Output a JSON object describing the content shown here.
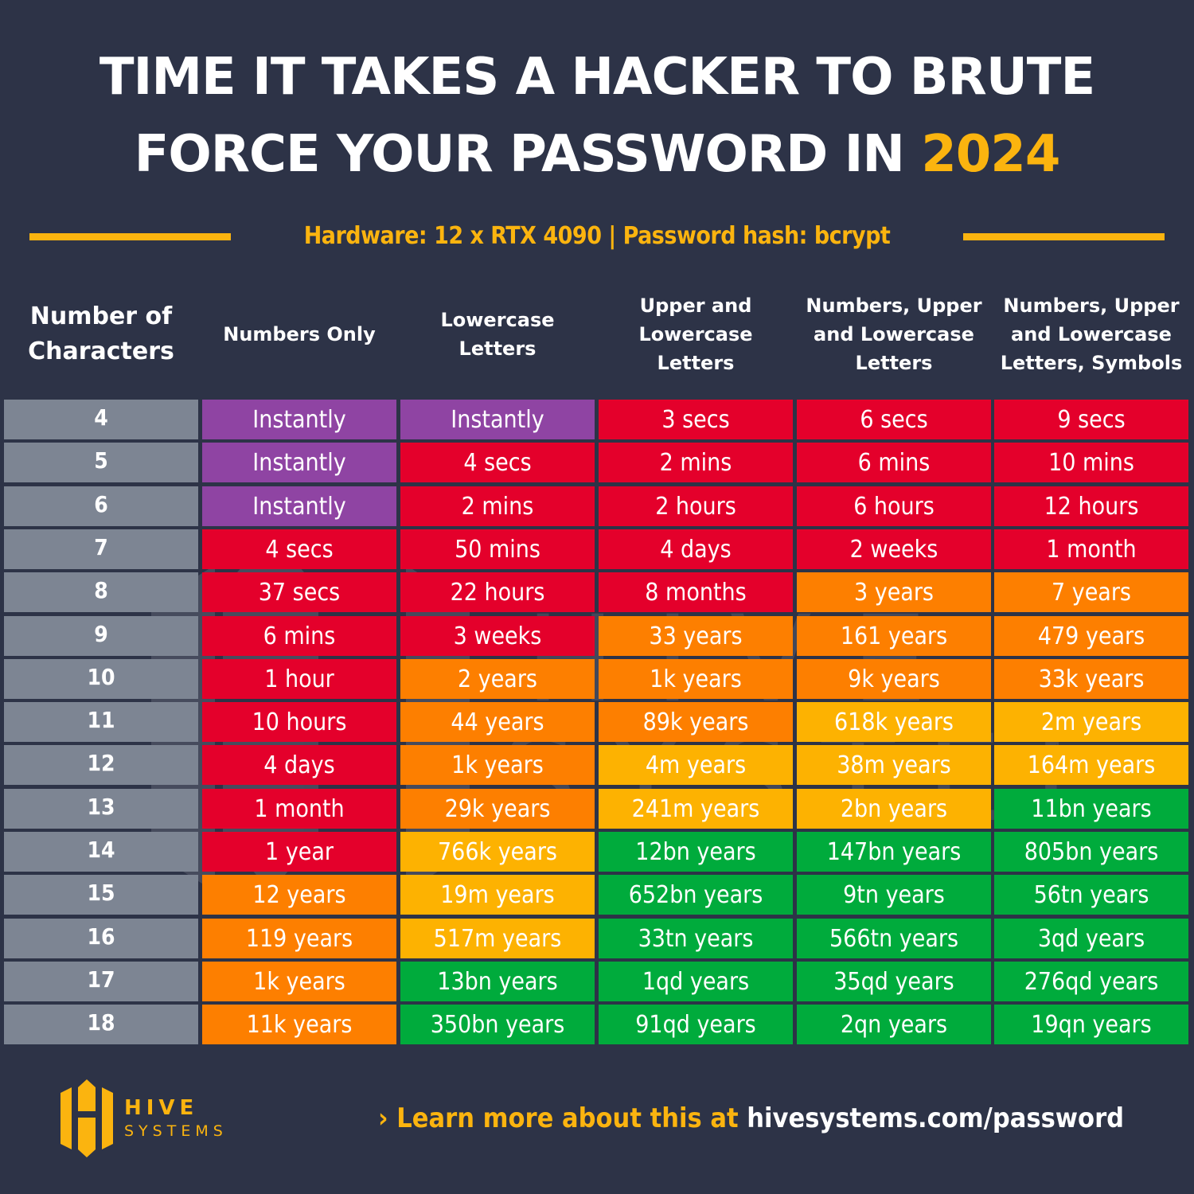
{
  "header": {
    "title_line1": "TIME IT TAKES A HACKER TO BRUTE",
    "title_line2_prefix": "FORCE YOUR PASSWORD IN ",
    "title_year": "2024",
    "subtitle": "Hardware: 12 x RTX 4090 | Password hash: bcrypt"
  },
  "colors": {
    "background": "#2d3347",
    "accent": "#fbb40f",
    "instantly": "#8f44a3",
    "red": "#e4002b",
    "orange": "#fd7f00",
    "yellow": "#fdb201",
    "green": "#00ab3c",
    "length_cell": "#7d8593"
  },
  "table": {
    "columns": [
      "Number of Characters",
      "Numbers Only",
      "Lowercase Letters",
      "Upper and Lowercase Letters",
      "Numbers, Upper and Lowercase Letters",
      "Numbers, Upper and Lowercase Letters, Symbols"
    ],
    "column_lines": [
      [
        "Number of",
        "Characters"
      ],
      [
        "Numbers Only"
      ],
      [
        "Lowercase",
        "Letters"
      ],
      [
        "Upper and",
        "Lowercase",
        "Letters"
      ],
      [
        "Numbers, Upper",
        "and Lowercase",
        "Letters"
      ],
      [
        "Numbers, Upper",
        "and Lowercase",
        "Letters, Symbols"
      ]
    ],
    "rows": [
      {
        "length": "4",
        "cells": [
          [
            "Instantly",
            "instantly"
          ],
          [
            "Instantly",
            "instantly"
          ],
          [
            "3 secs",
            "red"
          ],
          [
            "6 secs",
            "red"
          ],
          [
            "9 secs",
            "red"
          ]
        ]
      },
      {
        "length": "5",
        "cells": [
          [
            "Instantly",
            "instantly"
          ],
          [
            "4 secs",
            "red"
          ],
          [
            "2 mins",
            "red"
          ],
          [
            "6 mins",
            "red"
          ],
          [
            "10 mins",
            "red"
          ]
        ]
      },
      {
        "length": "6",
        "cells": [
          [
            "Instantly",
            "instantly"
          ],
          [
            "2 mins",
            "red"
          ],
          [
            "2 hours",
            "red"
          ],
          [
            "6 hours",
            "red"
          ],
          [
            "12 hours",
            "red"
          ]
        ]
      },
      {
        "length": "7",
        "cells": [
          [
            "4 secs",
            "red"
          ],
          [
            "50 mins",
            "red"
          ],
          [
            "4 days",
            "red"
          ],
          [
            "2 weeks",
            "red"
          ],
          [
            "1 month",
            "red"
          ]
        ]
      },
      {
        "length": "8",
        "cells": [
          [
            "37 secs",
            "red"
          ],
          [
            "22 hours",
            "red"
          ],
          [
            "8 months",
            "red"
          ],
          [
            "3 years",
            "orange"
          ],
          [
            "7 years",
            "orange"
          ]
        ]
      },
      {
        "length": "9",
        "cells": [
          [
            "6 mins",
            "red"
          ],
          [
            "3 weeks",
            "red"
          ],
          [
            "33 years",
            "orange"
          ],
          [
            "161 years",
            "orange"
          ],
          [
            "479 years",
            "orange"
          ]
        ]
      },
      {
        "length": "10",
        "cells": [
          [
            "1 hour",
            "red"
          ],
          [
            "2 years",
            "orange"
          ],
          [
            "1k years",
            "orange"
          ],
          [
            "9k years",
            "orange"
          ],
          [
            "33k years",
            "orange"
          ]
        ]
      },
      {
        "length": "11",
        "cells": [
          [
            "10 hours",
            "red"
          ],
          [
            "44 years",
            "orange"
          ],
          [
            "89k years",
            "orange"
          ],
          [
            "618k years",
            "yellow"
          ],
          [
            "2m years",
            "yellow"
          ]
        ]
      },
      {
        "length": "12",
        "cells": [
          [
            "4 days",
            "red"
          ],
          [
            "1k years",
            "orange"
          ],
          [
            "4m years",
            "yellow"
          ],
          [
            "38m years",
            "yellow"
          ],
          [
            "164m years",
            "yellow"
          ]
        ]
      },
      {
        "length": "13",
        "cells": [
          [
            "1 month",
            "red"
          ],
          [
            "29k years",
            "orange"
          ],
          [
            "241m years",
            "yellow"
          ],
          [
            "2bn years",
            "yellow"
          ],
          [
            "11bn years",
            "green"
          ]
        ]
      },
      {
        "length": "14",
        "cells": [
          [
            "1 year",
            "red"
          ],
          [
            "766k years",
            "yellow"
          ],
          [
            "12bn years",
            "green"
          ],
          [
            "147bn years",
            "green"
          ],
          [
            "805bn years",
            "green"
          ]
        ]
      },
      {
        "length": "15",
        "cells": [
          [
            "12 years",
            "orange"
          ],
          [
            "19m years",
            "yellow"
          ],
          [
            "652bn years",
            "green"
          ],
          [
            "9tn years",
            "green"
          ],
          [
            "56tn years",
            "green"
          ]
        ]
      },
      {
        "length": "16",
        "cells": [
          [
            "119 years",
            "orange"
          ],
          [
            "517m years",
            "yellow"
          ],
          [
            "33tn years",
            "green"
          ],
          [
            "566tn years",
            "green"
          ],
          [
            "3qd years",
            "green"
          ]
        ]
      },
      {
        "length": "17",
        "cells": [
          [
            "1k years",
            "orange"
          ],
          [
            "13bn years",
            "green"
          ],
          [
            "1qd years",
            "green"
          ],
          [
            "35qd years",
            "green"
          ],
          [
            "276qd years",
            "green"
          ]
        ]
      },
      {
        "length": "18",
        "cells": [
          [
            "11k years",
            "orange"
          ],
          [
            "350bn years",
            "green"
          ],
          [
            "91qd years",
            "green"
          ],
          [
            "2qn years",
            "green"
          ],
          [
            "19qn years",
            "green"
          ]
        ]
      }
    ]
  },
  "footer": {
    "logo_line1": "HIVE",
    "logo_line2": "SYSTEMS",
    "cta_prefix": "› Learn more about this at ",
    "cta_url": "hivesystems.com/password"
  },
  "chart_data": {
    "type": "table",
    "title": "TIME IT TAKES A HACKER TO BRUTE FORCE YOUR PASSWORD IN 2024",
    "subtitle": "Hardware: 12 x RTX 4090 | Password hash: bcrypt",
    "row_header": "Number of Characters",
    "columns": [
      "Numbers Only",
      "Lowercase Letters",
      "Upper and Lowercase Letters",
      "Numbers, Upper and Lowercase Letters",
      "Numbers, Upper and Lowercase Letters, Symbols"
    ],
    "rows": [
      "4",
      "5",
      "6",
      "7",
      "8",
      "9",
      "10",
      "11",
      "12",
      "13",
      "14",
      "15",
      "16",
      "17",
      "18"
    ],
    "values": [
      [
        "Instantly",
        "Instantly",
        "3 secs",
        "6 secs",
        "9 secs"
      ],
      [
        "Instantly",
        "4 secs",
        "2 mins",
        "6 mins",
        "10 mins"
      ],
      [
        "Instantly",
        "2 mins",
        "2 hours",
        "6 hours",
        "12 hours"
      ],
      [
        "4 secs",
        "50 mins",
        "4 days",
        "2 weeks",
        "1 month"
      ],
      [
        "37 secs",
        "22 hours",
        "8 months",
        "3 years",
        "7 years"
      ],
      [
        "6 mins",
        "3 weeks",
        "33 years",
        "161 years",
        "479 years"
      ],
      [
        "1 hour",
        "2 years",
        "1k years",
        "9k years",
        "33k years"
      ],
      [
        "10 hours",
        "44 years",
        "89k years",
        "618k years",
        "2m years"
      ],
      [
        "4 days",
        "1k years",
        "4m years",
        "38m years",
        "164m years"
      ],
      [
        "1 month",
        "29k years",
        "241m years",
        "2bn years",
        "11bn years"
      ],
      [
        "1 year",
        "766k years",
        "12bn years",
        "147bn years",
        "805bn years"
      ],
      [
        "12 years",
        "19m years",
        "652bn years",
        "9tn years",
        "56tn years"
      ],
      [
        "119 years",
        "517m years",
        "33tn years",
        "566tn years",
        "3qd years"
      ],
      [
        "1k years",
        "13bn years",
        "1qd years",
        "35qd years",
        "276qd years"
      ],
      [
        "11k years",
        "350bn years",
        "91qd years",
        "2qn years",
        "19qn years"
      ]
    ],
    "color_scale": {
      "instantly": "purple",
      "red": "seconds to ~1 year",
      "orange": "years to thousands of years",
      "yellow": "hundreds of thousands to hundreds of millions of years",
      "green": "billions of years and more"
    }
  }
}
